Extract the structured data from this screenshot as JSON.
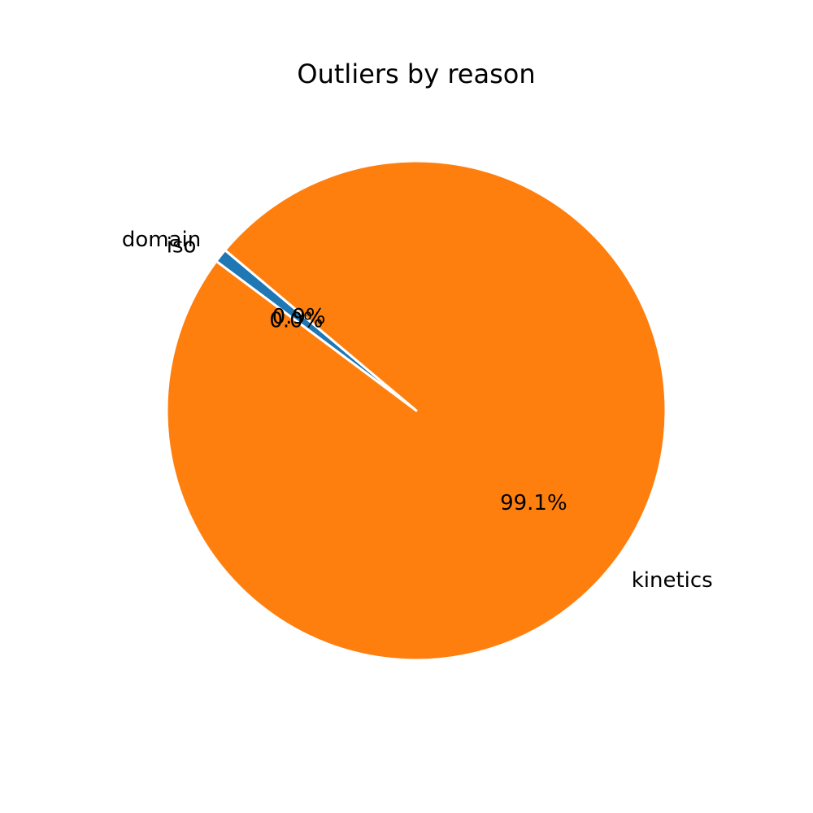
{
  "chart_data": {
    "type": "pie",
    "title": "Outliers by reason",
    "start_angle_deg": 140,
    "counterclock": true,
    "slices": [
      {
        "label": "domain",
        "value": 0.9,
        "pct_label": "0.9%",
        "color": "#1f77b4"
      },
      {
        "label": "iso",
        "value": 0.0,
        "pct_label": "0.0%",
        "color": "#2ca02c"
      },
      {
        "label": "kinetics",
        "value": 99.1,
        "pct_label": "99.1%",
        "color": "#ff7f0e"
      }
    ],
    "edge_color": "#ffffff"
  }
}
